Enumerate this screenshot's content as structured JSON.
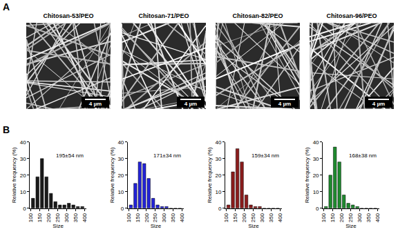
{
  "panel_a": {
    "label": "A",
    "images": [
      {
        "title": "Chitosan-53/PEO",
        "scale_bar": "4 µm"
      },
      {
        "title": "Chitosan-71/PEO",
        "scale_bar": "4 µm"
      },
      {
        "title": "Chitosan-82/PEO",
        "scale_bar": "4 µm"
      },
      {
        "title": "Chitosan-96/PEO",
        "scale_bar": "4 µm"
      }
    ]
  },
  "panel_b": {
    "label": "B"
  },
  "chart_data": [
    {
      "type": "histogram",
      "annotation": "195±54 nm",
      "x_label": "Size",
      "y_label": "Relative frequency (%)",
      "bins": [
        100,
        125,
        150,
        175,
        200,
        225,
        250,
        275,
        300,
        325,
        350,
        375,
        400
      ],
      "values": [
        6,
        19,
        30,
        19,
        9,
        4,
        2,
        2,
        3,
        2,
        1,
        1
      ],
      "color": "#1a1a1a",
      "xlim": [
        95,
        410
      ],
      "xticks": [
        100,
        150,
        200,
        250,
        300,
        350,
        400
      ],
      "ylim": [
        0,
        40
      ],
      "yticks": [
        0,
        10,
        20,
        30,
        40
      ],
      "grid": false
    },
    {
      "type": "histogram",
      "annotation": "171±34 nm",
      "x_label": "Size",
      "y_label": "Relative frequency (%)",
      "bins": [
        100,
        125,
        150,
        175,
        200,
        225,
        250,
        275,
        300,
        325,
        350,
        375,
        400
      ],
      "values": [
        2,
        15,
        28,
        27,
        18,
        6,
        2,
        1,
        1,
        0,
        0,
        0
      ],
      "color": "#2323d8",
      "xlim": [
        95,
        410
      ],
      "xticks": [
        100,
        150,
        200,
        250,
        300,
        350,
        400
      ],
      "ylim": [
        0,
        40
      ],
      "yticks": [
        0,
        10,
        20,
        30,
        40
      ],
      "grid": false
    },
    {
      "type": "histogram",
      "annotation": "159±34 nm",
      "x_label": "Size",
      "y_label": "Relative frequency (%)",
      "bins": [
        100,
        125,
        150,
        175,
        200,
        225,
        250,
        275,
        300,
        325,
        350,
        375,
        400
      ],
      "values": [
        2,
        22,
        36,
        28,
        8,
        2,
        1,
        1,
        0,
        0,
        0,
        0
      ],
      "color": "#8b1c1c",
      "xlim": [
        95,
        410
      ],
      "xticks": [
        100,
        150,
        200,
        250,
        300,
        350,
        400
      ],
      "ylim": [
        0,
        40
      ],
      "yticks": [
        0,
        10,
        20,
        30,
        40
      ],
      "grid": false
    },
    {
      "type": "histogram",
      "annotation": "168±38 nm",
      "x_label": "Size",
      "y_label": "Relative frequency (%)",
      "bins": [
        100,
        125,
        150,
        175,
        200,
        225,
        250,
        275,
        300,
        325,
        350,
        375,
        400
      ],
      "values": [
        1,
        20,
        37,
        28,
        8,
        3,
        2,
        1,
        0,
        0,
        0,
        0
      ],
      "color": "#1e8a2e",
      "xlim": [
        95,
        410
      ],
      "xticks": [
        100,
        150,
        200,
        250,
        300,
        350,
        400
      ],
      "ylim": [
        0,
        40
      ],
      "yticks": [
        0,
        10,
        20,
        30,
        40
      ],
      "grid": false
    }
  ]
}
